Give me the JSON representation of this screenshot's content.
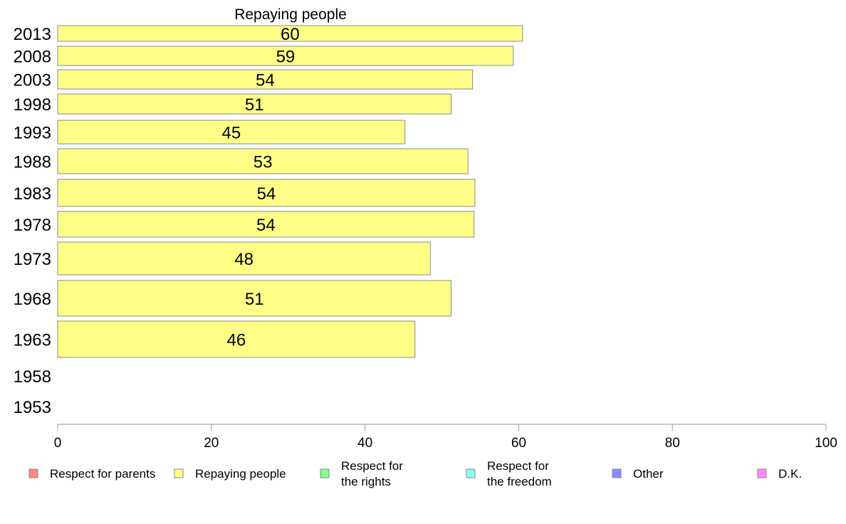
{
  "chart_data": {
    "type": "bar",
    "orientation": "horizontal",
    "title": "Repaying people",
    "xlabel": "",
    "ylabel": "",
    "xlim": [
      0,
      100
    ],
    "xticks": [
      0,
      20,
      40,
      60,
      80,
      100
    ],
    "grid": false,
    "categories": [
      "2013",
      "2008",
      "2003",
      "1998",
      "1993",
      "1988",
      "1983",
      "1978",
      "1973",
      "1968",
      "1963",
      "1958",
      "1953"
    ],
    "series": [
      {
        "name": "Repaying people",
        "color": "#ffff88",
        "values": [
          60.5,
          59.3,
          54,
          51.2,
          45.2,
          53.4,
          54.3,
          54.2,
          48.5,
          51.2,
          46.5,
          null,
          null
        ],
        "labels": [
          "60",
          "59",
          "54",
          "51",
          "45",
          "53",
          "54",
          "54",
          "48",
          "51",
          "46",
          "",
          ""
        ]
      }
    ],
    "legend_position": "bottom",
    "legend": [
      {
        "label": "Respect for parents",
        "color": "#ff8888"
      },
      {
        "label": "Repaying people",
        "color": "#ffff88"
      },
      {
        "label": "Respect for\nthe rights",
        "color": "#88ff88"
      },
      {
        "label": "Respect for\nthe freedom",
        "color": "#88ffff"
      },
      {
        "label": "Other",
        "color": "#8888ff"
      },
      {
        "label": "D.K.",
        "color": "#ff88ff"
      }
    ]
  }
}
